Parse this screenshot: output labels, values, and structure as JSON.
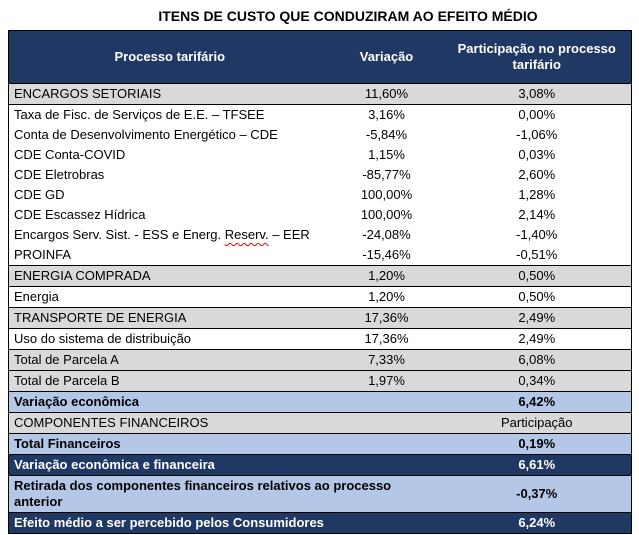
{
  "title": "ITENS DE CUSTO QUE CONDUZIRAM AO EFEITO MÉDIO",
  "colors": {
    "header_navy": "#1F3864",
    "section_gray": "#D9D9D9",
    "highlight_blue": "#B4C7E7",
    "border_black": "#000000",
    "squiggle_red": "#E00000",
    "header_text": "#FFFFFF"
  },
  "table": {
    "columns": [
      "Processo tarifário",
      "Variação",
      "Participação no processo tarifário"
    ],
    "rows": [
      {
        "label": "ENCARGOS SETORIAIS",
        "variacao": "11,60%",
        "participacao": "3,08%",
        "style": "section"
      },
      {
        "label": "Taxa de Fisc. de Serviços de E.E. – TFSEE",
        "variacao": "3,16%",
        "participacao": "0,00%",
        "style": "item"
      },
      {
        "label": "Conta de Desenvolvimento Energético – CDE",
        "variacao": "-5,84%",
        "participacao": "-1,06%",
        "style": "item"
      },
      {
        "label": "CDE Conta-COVID",
        "variacao": "1,15%",
        "participacao": "0,03%",
        "style": "item"
      },
      {
        "label": "CDE Eletrobras",
        "variacao": "-85,77%",
        "participacao": "2,60%",
        "style": "item"
      },
      {
        "label": "CDE GD",
        "variacao": "100,00%",
        "participacao": "1,28%",
        "style": "item"
      },
      {
        "label": "CDE Escassez Hídrica",
        "variacao": "100,00%",
        "participacao": "2,14%",
        "style": "item"
      },
      {
        "label": "Encargos Serv. Sist. - ESS e Energ. Reserv. – EER",
        "label_parts": [
          "Encargos Serv. Sist. - ESS e Energ. ",
          "Reserv.",
          " – EER"
        ],
        "variacao": "-24,08%",
        "participacao": "-1,40%",
        "style": "item"
      },
      {
        "label": "PROINFA",
        "variacao": "-15,46%",
        "participacao": "-0,51%",
        "style": "item"
      },
      {
        "label": "ENERGIA COMPRADA",
        "variacao": "1,20%",
        "participacao": "0,50%",
        "style": "section"
      },
      {
        "label": "Energia",
        "variacao": "1,20%",
        "participacao": "0,50%",
        "style": "item"
      },
      {
        "label": "TRANSPORTE DE ENERGIA",
        "variacao": "17,36%",
        "participacao": "2,49%",
        "style": "section"
      },
      {
        "label": "Uso do sistema de distribuição",
        "variacao": "17,36%",
        "participacao": "2,49%",
        "style": "item"
      },
      {
        "label": "Total de Parcela A",
        "variacao": "7,33%",
        "participacao": "6,08%",
        "style": "section"
      },
      {
        "label": "Total de Parcela B",
        "variacao": "1,97%",
        "participacao": "0,34%",
        "style": "section"
      },
      {
        "label": "Variação econômica",
        "participacao": "6,42%",
        "style": "highlight"
      },
      {
        "label": "COMPONENTES FINANCEIROS",
        "participacao": "Participação",
        "style": "section"
      },
      {
        "label": "Total Financeiros",
        "participacao": "0,19%",
        "style": "highlight"
      },
      {
        "label": "Variação econômica e financeira",
        "participacao": "6,61%",
        "style": "total"
      },
      {
        "label": "Retirada dos componentes financeiros relativos ao processo anterior",
        "participacao": "-0,37%",
        "style": "highlight"
      },
      {
        "label": "Efeito médio a ser percebido pelos Consumidores",
        "participacao": "6,24%",
        "style": "total"
      }
    ]
  }
}
